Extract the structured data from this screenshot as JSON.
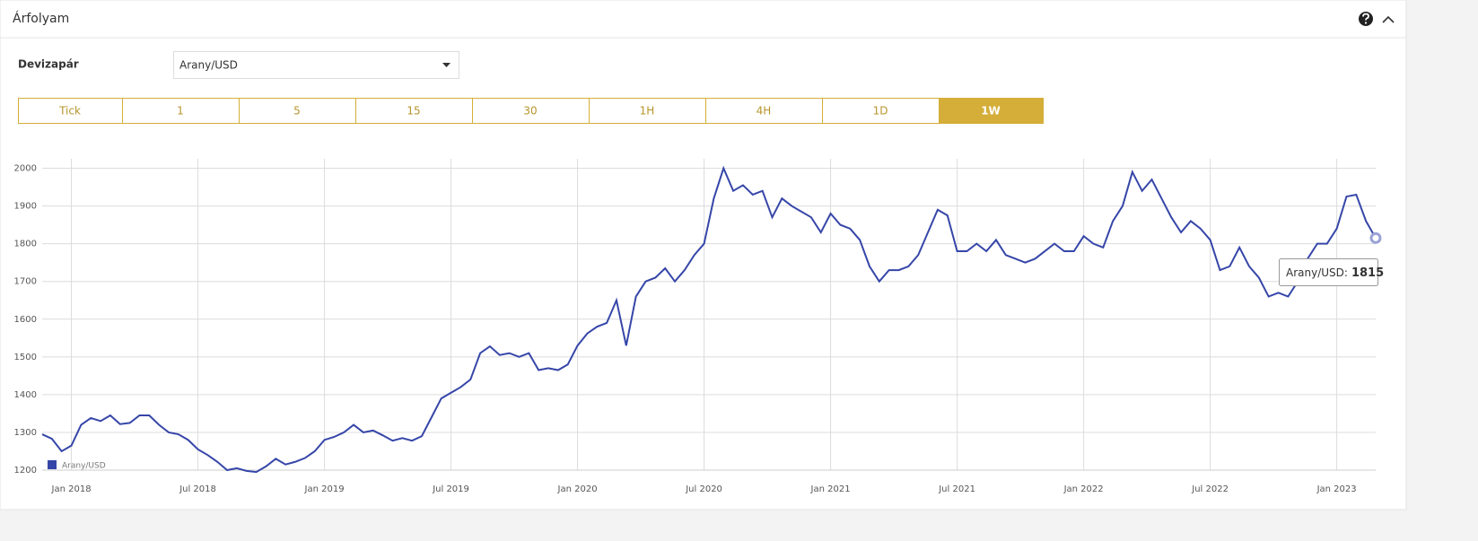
{
  "header": {
    "title": "Árfolyam"
  },
  "form": {
    "label": "Devizapár",
    "selected": "Arany/USD"
  },
  "timeframes": [
    "Tick",
    "1",
    "5",
    "15",
    "30",
    "1H",
    "4H",
    "1D",
    "1W"
  ],
  "active_index": 8,
  "chart_data": {
    "type": "line",
    "categories": [
      null,
      null,
      null,
      "Jan 2018",
      null,
      null,
      null,
      null,
      null,
      null,
      null,
      null,
      null,
      null,
      null,
      null,
      "Jul 2018",
      null,
      null,
      null,
      null,
      null,
      null,
      null,
      null,
      null,
      null,
      null,
      null,
      "Jan 2019",
      null,
      null,
      null,
      null,
      null,
      null,
      null,
      null,
      null,
      null,
      null,
      null,
      "Jul 2019",
      null,
      null,
      null,
      null,
      null,
      null,
      null,
      null,
      null,
      null,
      null,
      null,
      "Jan 2020",
      null,
      null,
      null,
      null,
      null,
      null,
      null,
      null,
      null,
      null,
      null,
      null,
      "Jul 2020",
      null,
      null,
      null,
      null,
      null,
      null,
      null,
      null,
      null,
      null,
      null,
      null,
      "Jan 2021",
      null,
      null,
      null,
      null,
      null,
      null,
      null,
      null,
      null,
      null,
      null,
      null,
      "Jul 2021",
      null,
      null,
      null,
      null,
      null,
      null,
      null,
      null,
      null,
      null,
      null,
      null,
      "Jan 2022",
      null,
      null,
      null,
      null,
      null,
      null,
      null,
      null,
      null,
      null,
      null,
      null,
      "Jul 2022",
      null,
      null,
      null,
      null,
      null,
      null,
      null,
      null,
      null,
      null,
      null,
      null,
      "Jan 2023",
      null,
      null,
      null,
      null
    ],
    "series": [
      {
        "name": "Arany/USD",
        "color": "#3646a8",
        "values": [
          1295,
          1283,
          1250,
          1265,
          1320,
          1338,
          1330,
          1345,
          1322,
          1325,
          1345,
          1345,
          1320,
          1300,
          1295,
          1280,
          1255,
          1240,
          1222,
          1200,
          1205,
          1198,
          1195,
          1210,
          1230,
          1215,
          1222,
          1232,
          1250,
          1280,
          1288,
          1300,
          1320,
          1300,
          1305,
          1292,
          1278,
          1285,
          1278,
          1290,
          1340,
          1390,
          1405,
          1420,
          1440,
          1510,
          1528,
          1505,
          1510,
          1500,
          1510,
          1465,
          1470,
          1465,
          1480,
          1530,
          1562,
          1580,
          1590,
          1650,
          1530,
          1660,
          1700,
          1710,
          1735,
          1700,
          1730,
          1770,
          1800,
          1920,
          2000,
          1940,
          1955,
          1930,
          1940,
          1870,
          1920,
          1900,
          1885,
          1870,
          1830,
          1880,
          1850,
          1840,
          1810,
          1740,
          1700,
          1730,
          1730,
          1740,
          1770,
          1830,
          1890,
          1875,
          1780,
          1780,
          1800,
          1780,
          1810,
          1770,
          1760,
          1750,
          1760,
          1780,
          1800,
          1780,
          1780,
          1820,
          1800,
          1790,
          1860,
          1900,
          1990,
          1940,
          1970,
          1920,
          1870,
          1830,
          1860,
          1840,
          1810,
          1730,
          1740,
          1790,
          1740,
          1710,
          1660,
          1670,
          1660,
          1700,
          1760,
          1800,
          1800,
          1840,
          1925,
          1930,
          1860,
          1815
        ]
      }
    ],
    "ylim": [
      1200,
      2025
    ],
    "yticks": [
      1200,
      1300,
      1400,
      1500,
      1600,
      1700,
      1800,
      1900,
      2000
    ],
    "grid": true,
    "legend": "bottom-left",
    "tooltip_label": "Arany/USD:"
  }
}
